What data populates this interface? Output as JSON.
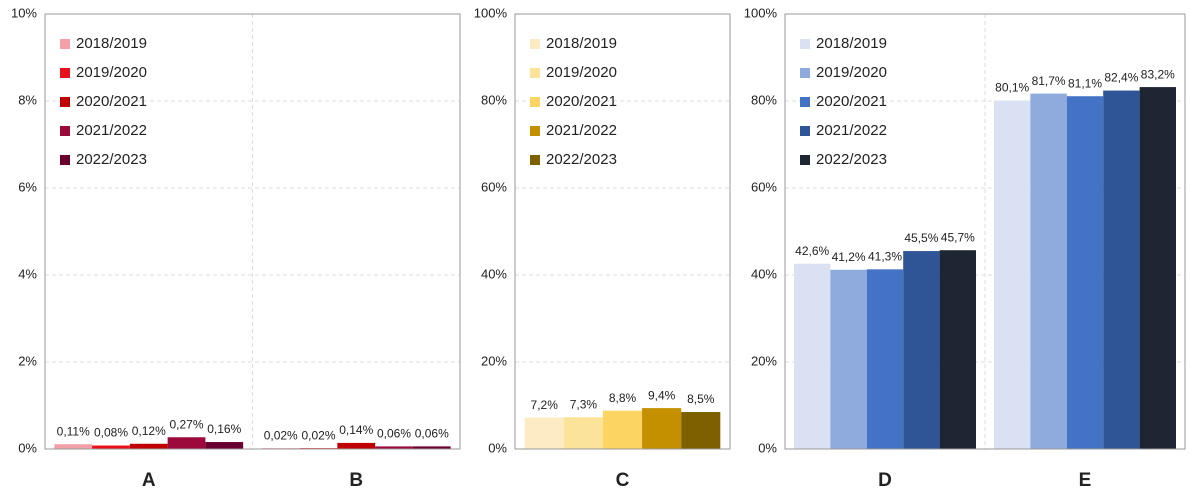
{
  "chart_data": [
    {
      "type": "bar",
      "categories": [
        "A",
        "B"
      ],
      "ylim": [
        0,
        10
      ],
      "yticks": [
        {
          "value": 0,
          "label": "0%"
        },
        {
          "value": 2,
          "label": "2%"
        },
        {
          "value": 4,
          "label": "4%"
        },
        {
          "value": 6,
          "label": "6%"
        },
        {
          "value": 8,
          "label": "8%"
        },
        {
          "value": 10,
          "label": "10%"
        }
      ],
      "grid": true,
      "legend": "upper left",
      "series": [
        {
          "name": "2018/2019",
          "color": "#f4a0a8",
          "values": [
            0.11,
            0.02
          ],
          "value_labels": [
            "0,11%",
            "0,02%"
          ]
        },
        {
          "name": "2019/2020",
          "color": "#e8101a",
          "values": [
            0.08,
            0.02
          ],
          "value_labels": [
            "0,08%",
            "0,02%"
          ]
        },
        {
          "name": "2020/2021",
          "color": "#c00000",
          "values": [
            0.12,
            0.14
          ],
          "value_labels": [
            "0,12%",
            "0,14%"
          ]
        },
        {
          "name": "2021/2022",
          "color": "#9c0a3c",
          "values": [
            0.27,
            0.06
          ],
          "value_labels": [
            "0,27%",
            "0,06%"
          ]
        },
        {
          "name": "2022/2023",
          "color": "#6a0030",
          "values": [
            0.16,
            0.06
          ],
          "value_labels": [
            "0,16%",
            "0,06%"
          ]
        }
      ]
    },
    {
      "type": "bar",
      "categories": [
        "C"
      ],
      "ylim": [
        0,
        100
      ],
      "yticks": [
        {
          "value": 0,
          "label": "0%"
        },
        {
          "value": 20,
          "label": "20%"
        },
        {
          "value": 40,
          "label": "40%"
        },
        {
          "value": 60,
          "label": "60%"
        },
        {
          "value": 80,
          "label": "80%"
        },
        {
          "value": 100,
          "label": "100%"
        }
      ],
      "grid": true,
      "legend": "upper left",
      "series": [
        {
          "name": "2018/2019",
          "color": "#fdebc4",
          "values": [
            7.2
          ],
          "value_labels": [
            "7,2%"
          ]
        },
        {
          "name": "2019/2020",
          "color": "#fbe49a",
          "values": [
            7.3
          ],
          "value_labels": [
            "7,3%"
          ]
        },
        {
          "name": "2020/2021",
          "color": "#fcd461",
          "values": [
            8.8
          ],
          "value_labels": [
            "8,8%"
          ]
        },
        {
          "name": "2021/2022",
          "color": "#c59000",
          "values": [
            9.4
          ],
          "value_labels": [
            "9,4%"
          ]
        },
        {
          "name": "2022/2023",
          "color": "#7f6000",
          "values": [
            8.5
          ],
          "value_labels": [
            "8,5%"
          ]
        }
      ]
    },
    {
      "type": "bar",
      "categories": [
        "D",
        "E"
      ],
      "ylim": [
        0,
        100
      ],
      "yticks": [
        {
          "value": 0,
          "label": "0%"
        },
        {
          "value": 20,
          "label": "20%"
        },
        {
          "value": 40,
          "label": "40%"
        },
        {
          "value": 60,
          "label": "60%"
        },
        {
          "value": 80,
          "label": "80%"
        },
        {
          "value": 100,
          "label": "100%"
        }
      ],
      "grid": true,
      "legend": "upper left",
      "series": [
        {
          "name": "2018/2019",
          "color": "#d9e1f2",
          "values": [
            42.6,
            80.1
          ],
          "value_labels": [
            "42,6%",
            "80,1%"
          ]
        },
        {
          "name": "2019/2020",
          "color": "#8faadc",
          "values": [
            41.2,
            81.7
          ],
          "value_labels": [
            "41,2%",
            "81,7%"
          ]
        },
        {
          "name": "2020/2021",
          "color": "#4472c4",
          "values": [
            41.3,
            81.1
          ],
          "value_labels": [
            "41,3%",
            "81,1%"
          ]
        },
        {
          "name": "2021/2022",
          "color": "#2f5597",
          "values": [
            45.5,
            82.4
          ],
          "value_labels": [
            "45,5%",
            "82,4%"
          ]
        },
        {
          "name": "2022/2023",
          "color": "#1f2633",
          "values": [
            45.7,
            83.2
          ],
          "value_labels": [
            "45,7%",
            "83,2%"
          ]
        }
      ]
    }
  ]
}
